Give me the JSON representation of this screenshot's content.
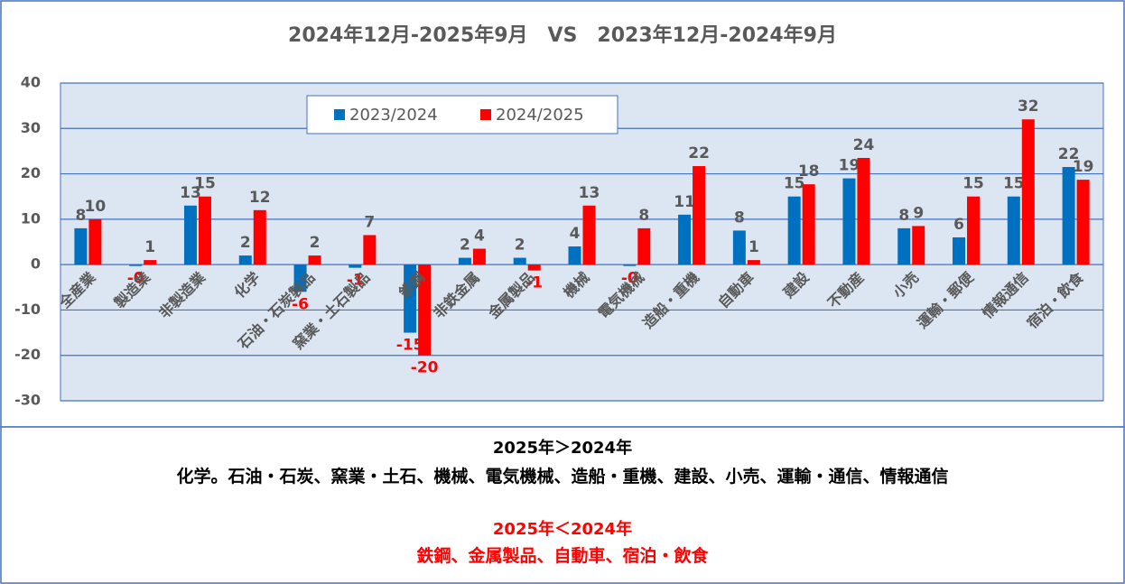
{
  "chart_data": {
    "type": "bar",
    "title": "2024年12月-2025年9月　VS　2023年12月-2024年9月",
    "categories": [
      "全産業",
      "製造業",
      "非製造業",
      "化学",
      "石油・石炭製品",
      "窯業・土石製品",
      "鉄鋼",
      "非鉄金属",
      "金属製品",
      "機械",
      "電気機械",
      "造船・重機",
      "自動車",
      "建設",
      "不動産",
      "小売",
      "運輸・郵便",
      "情報通信",
      "宿泊・飲食"
    ],
    "series": [
      {
        "name": "2023/2024",
        "color": "#0070c0",
        "values": [
          8,
          -0.3,
          13,
          2,
          -6,
          -0.7,
          -15,
          1.5,
          1.5,
          4,
          -0.3,
          11,
          7.5,
          15,
          19,
          8,
          6,
          15,
          21.5
        ],
        "value_labels": [
          "8",
          "-0",
          "13",
          "2",
          "-6",
          "-1",
          "-15",
          "2",
          "2",
          "4",
          "-0",
          "11",
          "8",
          "15",
          "19",
          "8",
          "6",
          "15",
          "22"
        ]
      },
      {
        "name": "2024/2025",
        "color": "#ff0000",
        "values": [
          10,
          1,
          15,
          12,
          2,
          6.5,
          -20,
          3.5,
          -1.3,
          13,
          8,
          21.7,
          1,
          17.7,
          23.5,
          8.5,
          15,
          32,
          18.7
        ],
        "value_labels": [
          "10",
          "1",
          "15",
          "12",
          "2",
          "7",
          "-20",
          "4",
          "-1",
          "13",
          "8",
          "22",
          "1",
          "18",
          "24",
          "9",
          "15",
          "32",
          "19"
        ]
      }
    ],
    "ylim": [
      -30,
      40
    ],
    "yticks": [
      -30,
      -20,
      -10,
      0,
      10,
      20,
      30,
      40
    ],
    "grid": true
  },
  "summary": {
    "up_title": "2025年＞2024年",
    "up_list": "化学。石油・石炭、窯業・土石、機械、電気機械、造船・重機、建設、小売、運輸・通信、情報通信",
    "down_title": "2025年＜2024年",
    "down_list": "鉄鋼、金属製品、自動車、宿泊・飲食"
  }
}
